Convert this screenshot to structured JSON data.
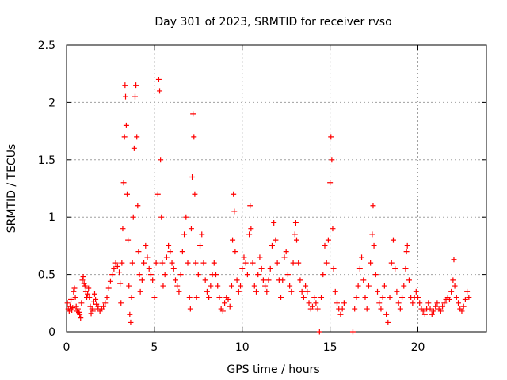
{
  "chart_data": {
    "type": "scatter",
    "title": "Day 301 of 2023, SRMTID for receiver rvso",
    "xlabel": "GPS time / hours",
    "ylabel": "SRMTID / TECUs",
    "xlim": [
      0,
      23.9
    ],
    "ylim": [
      0,
      2.5
    ],
    "xticks": [
      0,
      5,
      10,
      15,
      20
    ],
    "yticks": [
      0,
      0.5,
      1,
      1.5,
      2,
      2.5
    ],
    "grid": true,
    "marker": "+",
    "series": [
      {
        "name": "SRMTID",
        "color": "#ff0000",
        "points": [
          [
            0.05,
            0.25
          ],
          [
            0.1,
            0.2
          ],
          [
            0.15,
            0.18
          ],
          [
            0.2,
            0.22
          ],
          [
            0.25,
            0.28
          ],
          [
            0.3,
            0.19
          ],
          [
            0.35,
            0.21
          ],
          [
            0.4,
            0.35
          ],
          [
            0.45,
            0.38
          ],
          [
            0.5,
            0.3
          ],
          [
            0.55,
            0.22
          ],
          [
            0.6,
            0.18
          ],
          [
            0.65,
            0.2
          ],
          [
            0.7,
            0.17
          ],
          [
            0.75,
            0.15
          ],
          [
            0.8,
            0.12
          ],
          [
            0.85,
            0.25
          ],
          [
            0.9,
            0.45
          ],
          [
            0.95,
            0.48
          ],
          [
            1.0,
            0.42
          ],
          [
            1.05,
            0.4
          ],
          [
            1.1,
            0.35
          ],
          [
            1.15,
            0.3
          ],
          [
            1.2,
            0.33
          ],
          [
            1.25,
            0.38
          ],
          [
            1.3,
            0.3
          ],
          [
            1.35,
            0.22
          ],
          [
            1.4,
            0.16
          ],
          [
            1.45,
            0.2
          ],
          [
            1.5,
            0.18
          ],
          [
            1.55,
            0.26
          ],
          [
            1.6,
            0.33
          ],
          [
            1.65,
            0.28
          ],
          [
            1.7,
            0.24
          ],
          [
            1.75,
            0.2
          ],
          [
            1.8,
            0.22
          ],
          [
            1.9,
            0.18
          ],
          [
            2.0,
            0.2
          ],
          [
            2.1,
            0.22
          ],
          [
            2.2,
            0.25
          ],
          [
            2.3,
            0.3
          ],
          [
            2.4,
            0.38
          ],
          [
            2.5,
            0.44
          ],
          [
            2.6,
            0.5
          ],
          [
            2.7,
            0.55
          ],
          [
            2.8,
            0.6
          ],
          [
            2.9,
            0.57
          ],
          [
            3.0,
            0.52
          ],
          [
            3.05,
            0.42
          ],
          [
            3.1,
            0.25
          ],
          [
            3.15,
            0.6
          ],
          [
            3.2,
            0.9
          ],
          [
            3.25,
            1.3
          ],
          [
            3.3,
            1.7
          ],
          [
            3.33,
            2.15
          ],
          [
            3.36,
            2.05
          ],
          [
            3.4,
            1.8
          ],
          [
            3.45,
            1.2
          ],
          [
            3.5,
            0.8
          ],
          [
            3.55,
            0.4
          ],
          [
            3.6,
            0.15
          ],
          [
            3.65,
            0.08
          ],
          [
            3.7,
            0.3
          ],
          [
            3.75,
            0.6
          ],
          [
            3.8,
            1.0
          ],
          [
            3.85,
            1.6
          ],
          [
            3.9,
            2.05
          ],
          [
            3.95,
            2.15
          ],
          [
            4.0,
            1.7
          ],
          [
            4.05,
            1.1
          ],
          [
            4.1,
            0.7
          ],
          [
            4.15,
            0.5
          ],
          [
            4.2,
            0.35
          ],
          [
            4.3,
            0.45
          ],
          [
            4.4,
            0.6
          ],
          [
            4.5,
            0.75
          ],
          [
            4.6,
            0.65
          ],
          [
            4.7,
            0.55
          ],
          [
            4.8,
            0.5
          ],
          [
            4.9,
            0.45
          ],
          [
            5.0,
            0.3
          ],
          [
            5.1,
            0.6
          ],
          [
            5.2,
            1.2
          ],
          [
            5.25,
            2.2
          ],
          [
            5.3,
            2.1
          ],
          [
            5.35,
            1.5
          ],
          [
            5.4,
            1.0
          ],
          [
            5.45,
            0.6
          ],
          [
            5.5,
            0.4
          ],
          [
            5.6,
            0.5
          ],
          [
            5.7,
            0.65
          ],
          [
            5.8,
            0.75
          ],
          [
            5.9,
            0.7
          ],
          [
            6.0,
            0.6
          ],
          [
            6.1,
            0.55
          ],
          [
            6.2,
            0.45
          ],
          [
            6.3,
            0.4
          ],
          [
            6.4,
            0.35
          ],
          [
            6.5,
            0.5
          ],
          [
            6.6,
            0.7
          ],
          [
            6.7,
            0.85
          ],
          [
            6.8,
            1.0
          ],
          [
            6.9,
            0.6
          ],
          [
            7.0,
            0.3
          ],
          [
            7.05,
            0.2
          ],
          [
            7.1,
            0.9
          ],
          [
            7.15,
            1.35
          ],
          [
            7.2,
            1.9
          ],
          [
            7.25,
            1.7
          ],
          [
            7.3,
            1.2
          ],
          [
            7.35,
            0.6
          ],
          [
            7.4,
            0.3
          ],
          [
            7.5,
            0.5
          ],
          [
            7.6,
            0.75
          ],
          [
            7.7,
            0.85
          ],
          [
            7.8,
            0.6
          ],
          [
            7.9,
            0.45
          ],
          [
            8.0,
            0.35
          ],
          [
            8.1,
            0.3
          ],
          [
            8.2,
            0.4
          ],
          [
            8.3,
            0.5
          ],
          [
            8.4,
            0.6
          ],
          [
            8.5,
            0.5
          ],
          [
            8.6,
            0.4
          ],
          [
            8.7,
            0.3
          ],
          [
            8.8,
            0.2
          ],
          [
            8.9,
            0.18
          ],
          [
            9.0,
            0.25
          ],
          [
            9.1,
            0.3
          ],
          [
            9.2,
            0.28
          ],
          [
            9.3,
            0.22
          ],
          [
            9.4,
            0.4
          ],
          [
            9.45,
            0.8
          ],
          [
            9.5,
            1.2
          ],
          [
            9.55,
            1.05
          ],
          [
            9.6,
            0.7
          ],
          [
            9.7,
            0.45
          ],
          [
            9.8,
            0.35
          ],
          [
            9.9,
            0.4
          ],
          [
            10.0,
            0.55
          ],
          [
            10.1,
            0.65
          ],
          [
            10.2,
            0.6
          ],
          [
            10.3,
            0.5
          ],
          [
            10.4,
            0.85
          ],
          [
            10.45,
            1.1
          ],
          [
            10.5,
            0.9
          ],
          [
            10.6,
            0.6
          ],
          [
            10.7,
            0.4
          ],
          [
            10.8,
            0.35
          ],
          [
            10.9,
            0.5
          ],
          [
            11.0,
            0.65
          ],
          [
            11.1,
            0.55
          ],
          [
            11.2,
            0.45
          ],
          [
            11.3,
            0.4
          ],
          [
            11.4,
            0.35
          ],
          [
            11.5,
            0.45
          ],
          [
            11.6,
            0.55
          ],
          [
            11.7,
            0.75
          ],
          [
            11.8,
            0.95
          ],
          [
            11.9,
            0.8
          ],
          [
            12.0,
            0.6
          ],
          [
            12.1,
            0.45
          ],
          [
            12.2,
            0.3
          ],
          [
            12.3,
            0.45
          ],
          [
            12.4,
            0.65
          ],
          [
            12.5,
            0.7
          ],
          [
            12.6,
            0.5
          ],
          [
            12.7,
            0.4
          ],
          [
            12.8,
            0.35
          ],
          [
            12.9,
            0.6
          ],
          [
            13.0,
            0.85
          ],
          [
            13.05,
            0.95
          ],
          [
            13.1,
            0.8
          ],
          [
            13.2,
            0.6
          ],
          [
            13.3,
            0.45
          ],
          [
            13.4,
            0.35
          ],
          [
            13.5,
            0.3
          ],
          [
            13.6,
            0.4
          ],
          [
            13.7,
            0.35
          ],
          [
            13.8,
            0.25
          ],
          [
            13.9,
            0.2
          ],
          [
            14.0,
            0.22
          ],
          [
            14.1,
            0.3
          ],
          [
            14.2,
            0.25
          ],
          [
            14.3,
            0.2
          ],
          [
            14.4,
            0.0
          ],
          [
            14.5,
            0.3
          ],
          [
            14.6,
            0.5
          ],
          [
            14.7,
            0.75
          ],
          [
            14.8,
            0.6
          ],
          [
            14.9,
            0.8
          ],
          [
            15.0,
            1.3
          ],
          [
            15.05,
            1.7
          ],
          [
            15.1,
            1.5
          ],
          [
            15.15,
            0.9
          ],
          [
            15.2,
            0.55
          ],
          [
            15.3,
            0.35
          ],
          [
            15.4,
            0.25
          ],
          [
            15.5,
            0.2
          ],
          [
            15.6,
            0.15
          ],
          [
            15.7,
            0.2
          ],
          [
            15.8,
            0.25
          ],
          [
            16.3,
            0.0
          ],
          [
            16.4,
            0.2
          ],
          [
            16.5,
            0.3
          ],
          [
            16.6,
            0.4
          ],
          [
            16.7,
            0.55
          ],
          [
            16.8,
            0.65
          ],
          [
            16.9,
            0.45
          ],
          [
            17.0,
            0.3
          ],
          [
            17.1,
            0.2
          ],
          [
            17.2,
            0.4
          ],
          [
            17.3,
            0.6
          ],
          [
            17.4,
            0.85
          ],
          [
            17.45,
            1.1
          ],
          [
            17.5,
            0.75
          ],
          [
            17.6,
            0.5
          ],
          [
            17.7,
            0.35
          ],
          [
            17.8,
            0.25
          ],
          [
            17.9,
            0.2
          ],
          [
            18.0,
            0.3
          ],
          [
            18.1,
            0.4
          ],
          [
            18.2,
            0.15
          ],
          [
            18.3,
            0.08
          ],
          [
            18.4,
            0.3
          ],
          [
            18.5,
            0.6
          ],
          [
            18.6,
            0.8
          ],
          [
            18.7,
            0.55
          ],
          [
            18.8,
            0.35
          ],
          [
            18.9,
            0.25
          ],
          [
            19.0,
            0.2
          ],
          [
            19.1,
            0.3
          ],
          [
            19.2,
            0.4
          ],
          [
            19.3,
            0.55
          ],
          [
            19.35,
            0.7
          ],
          [
            19.4,
            0.75
          ],
          [
            19.5,
            0.45
          ],
          [
            19.6,
            0.3
          ],
          [
            19.7,
            0.25
          ],
          [
            19.8,
            0.3
          ],
          [
            19.9,
            0.35
          ],
          [
            20.0,
            0.3
          ],
          [
            20.1,
            0.25
          ],
          [
            20.2,
            0.2
          ],
          [
            20.3,
            0.18
          ],
          [
            20.4,
            0.15
          ],
          [
            20.5,
            0.2
          ],
          [
            20.6,
            0.25
          ],
          [
            20.7,
            0.2
          ],
          [
            20.8,
            0.15
          ],
          [
            20.9,
            0.18
          ],
          [
            21.0,
            0.22
          ],
          [
            21.1,
            0.25
          ],
          [
            21.2,
            0.2
          ],
          [
            21.3,
            0.18
          ],
          [
            21.4,
            0.22
          ],
          [
            21.5,
            0.25
          ],
          [
            21.6,
            0.28
          ],
          [
            21.7,
            0.3
          ],
          [
            21.8,
            0.28
          ],
          [
            21.9,
            0.35
          ],
          [
            22.0,
            0.45
          ],
          [
            22.05,
            0.63
          ],
          [
            22.1,
            0.4
          ],
          [
            22.2,
            0.3
          ],
          [
            22.3,
            0.25
          ],
          [
            22.4,
            0.2
          ],
          [
            22.5,
            0.18
          ],
          [
            22.6,
            0.22
          ],
          [
            22.7,
            0.28
          ],
          [
            22.8,
            0.35
          ],
          [
            22.9,
            0.3
          ]
        ]
      }
    ]
  }
}
